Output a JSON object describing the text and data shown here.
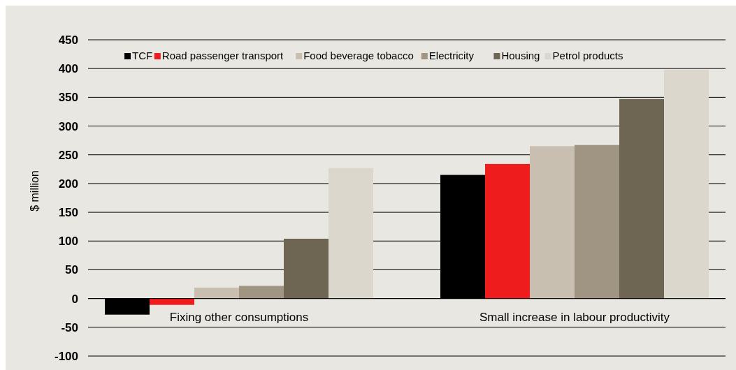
{
  "chart_data": {
    "type": "bar",
    "ylabel": "$ million",
    "categories": [
      "Fixing other consumptions",
      "Small increase in labour productivity"
    ],
    "series": [
      {
        "name": "TCF",
        "color": "#000000",
        "values": [
          -28,
          215
        ]
      },
      {
        "name": "Road passenger transport",
        "color": "#ee1c1c",
        "values": [
          -11,
          234
        ]
      },
      {
        "name": "Food beverage tobacco",
        "color": "#c8bfb1",
        "values": [
          19,
          265
        ]
      },
      {
        "name": "Electricity",
        "color": "#a09482",
        "values": [
          22,
          267
        ]
      },
      {
        "name": "Housing",
        "color": "#6e6552",
        "values": [
          104,
          347
        ]
      },
      {
        "name": "Petrol products",
        "color": "#dcd7cd",
        "values": [
          227,
          398
        ]
      }
    ],
    "ylim": [
      -100,
      450
    ],
    "yticks": [
      -100,
      -50,
      0,
      50,
      100,
      150,
      200,
      250,
      300,
      350,
      400,
      450
    ],
    "grid": "y",
    "legend": "top"
  }
}
